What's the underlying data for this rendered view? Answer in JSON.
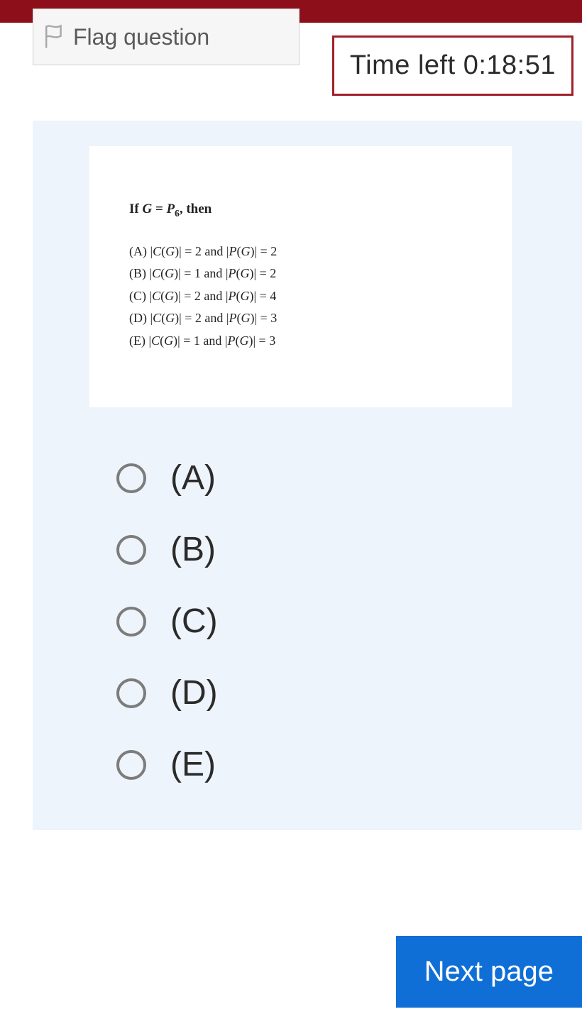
{
  "colors": {
    "header_bg": "#8c0f1a",
    "timer_border": "#a02028",
    "panel_bg": "#eef4fb",
    "next_btn_bg": "#0f6fd6",
    "radio_border": "#7c7c7c",
    "text": "#2b2b2b"
  },
  "flag": {
    "label": "Flag question"
  },
  "timer": {
    "text": "Time left 0:18:51"
  },
  "question": {
    "prompt_prefix": "If ",
    "prompt_var": "G",
    "prompt_eq": " = ",
    "prompt_rhs": "P",
    "prompt_sub": "6",
    "prompt_suffix": ", then",
    "lines": [
      {
        "letter": "(A)",
        "c_val": "2",
        "p_val": "2"
      },
      {
        "letter": "(B)",
        "c_val": "1",
        "p_val": "2"
      },
      {
        "letter": "(C)",
        "c_val": "2",
        "p_val": "4"
      },
      {
        "letter": "(D)",
        "c_val": "2",
        "p_val": "3"
      },
      {
        "letter": "(E)",
        "c_val": "1",
        "p_val": "3"
      }
    ]
  },
  "answers": [
    {
      "label": "(A)"
    },
    {
      "label": "(B)"
    },
    {
      "label": "(C)"
    },
    {
      "label": "(D)"
    },
    {
      "label": "(E)"
    }
  ],
  "next_button": {
    "label": "Next page"
  }
}
